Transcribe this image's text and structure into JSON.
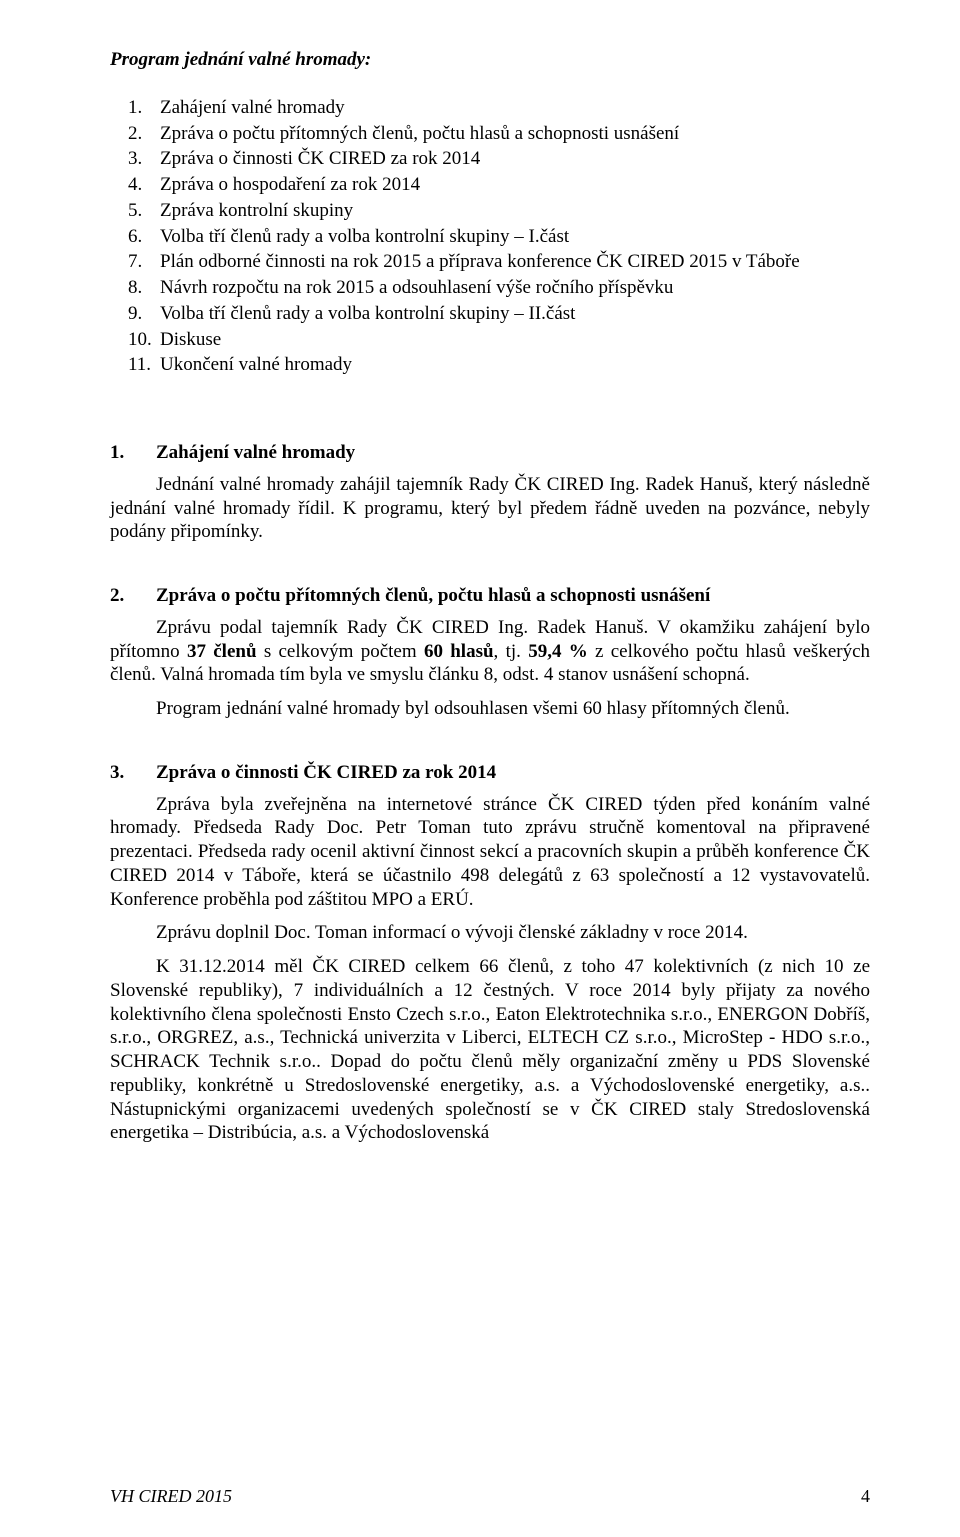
{
  "program": {
    "heading": "Program jednání valné hromady:",
    "items": [
      {
        "n": "1.",
        "text": "Zahájení valné hromady"
      },
      {
        "n": "2.",
        "text": "Zpráva o počtu přítomných členů, počtu hlasů a schopnosti usnášení"
      },
      {
        "n": "3.",
        "text": "Zpráva o činnosti ČK CIRED za rok 2014"
      },
      {
        "n": "4.",
        "text": "Zpráva o hospodaření za rok 2014"
      },
      {
        "n": "5.",
        "text": "Zpráva kontrolní skupiny"
      },
      {
        "n": "6.",
        "text": "Volba tří členů rady a volba kontrolní skupiny – I.část"
      },
      {
        "n": "7.",
        "text": "Plán odborné činnosti na rok 2015 a příprava konference ČK CIRED 2015 v Táboře"
      },
      {
        "n": "8.",
        "text": "Návrh rozpočtu na rok 2015 a odsouhlasení výše ročního příspěvku"
      },
      {
        "n": "9.",
        "text": "Volba tří členů rady a volba kontrolní skupiny – II.část"
      },
      {
        "n": "10.",
        "text": "Diskuse"
      },
      {
        "n": "11.",
        "text": "Ukončení valné hromady"
      }
    ]
  },
  "section1": {
    "num": "1.",
    "title": "Zahájení valné hromady",
    "body": "Jednání valné hromady zahájil tajemník Rady ČK CIRED Ing. Radek Hanuš, který následně jednání valné hromady řídil. K programu, který byl předem řádně uveden na pozvánce, nebyly podány připomínky."
  },
  "section2": {
    "num": "2.",
    "title": "Zpráva o počtu přítomných členů, počtu hlasů a schopnosti usnášení",
    "line1_a": "Zprávu podal tajemník Rady ČK CIRED Ing. Radek Hanuš. V okamžiku zahájení bylo přítomno ",
    "line1_b": "37 členů",
    "line1_c": " s celkovým počtem ",
    "line1_d": "60 hlasů",
    "line1_e": ", tj. ",
    "line1_f": "59,4 %",
    "line1_g": " z celkového počtu hlasů veškerých členů. Valná hromada tím byla ve smyslu článku 8, odst. 4 stanov usnášení schopná.",
    "line2": "Program jednání valné hromady byl odsouhlasen všemi 60 hlasy přítomných členů."
  },
  "section3": {
    "num": "3.",
    "title": "Zpráva o činnosti ČK CIRED za rok 2014",
    "p1": "Zpráva byla zveřejněna na internetové stránce ČK CIRED týden před konáním valné hromady. Předseda Rady Doc. Petr Toman tuto zprávu stručně komentoval na připravené prezentaci. Předseda rady ocenil aktivní činnost sekcí a pracovních skupin a průběh konference ČK CIRED 2014 v Táboře, která se účastnilo 498 delegátů z 63 společností a 12 vystavovatelů. Konference proběhla pod záštitou MPO a ERÚ.",
    "p2": "Zprávu doplnil Doc. Toman informací o vývoji členské základny v roce 2014.",
    "p3": "K 31.12.2014 měl ČK CIRED celkem 66 členů, z toho 47 kolektivních (z nich 10 ze Slovenské republiky), 7 individuálních a 12 čestných. V roce 2014 byly přijaty za nového kolektivního člena společnosti Ensto Czech s.r.o., Eaton Elektrotechnika s.r.o., ENERGON Dobříš, s.r.o., ORGREZ, a.s., Technická univerzita v Liberci, ELTECH CZ s.r.o., MicroStep - HDO s.r.o., SCHRACK Technik s.r.o.. Dopad do počtu členů měly organizační změny u PDS Slovenské republiky, konkrétně u Stredoslovenské energetiky, a.s. a Východoslovenské energetiky, a.s.. Nástupnickými organizacemi uvedených společností se v ČK CIRED staly Stredoslovenská energetika – Distribúcia, a.s. a Východoslovenská"
  },
  "footer": {
    "left": "VH CIRED 2015",
    "page": "4"
  }
}
